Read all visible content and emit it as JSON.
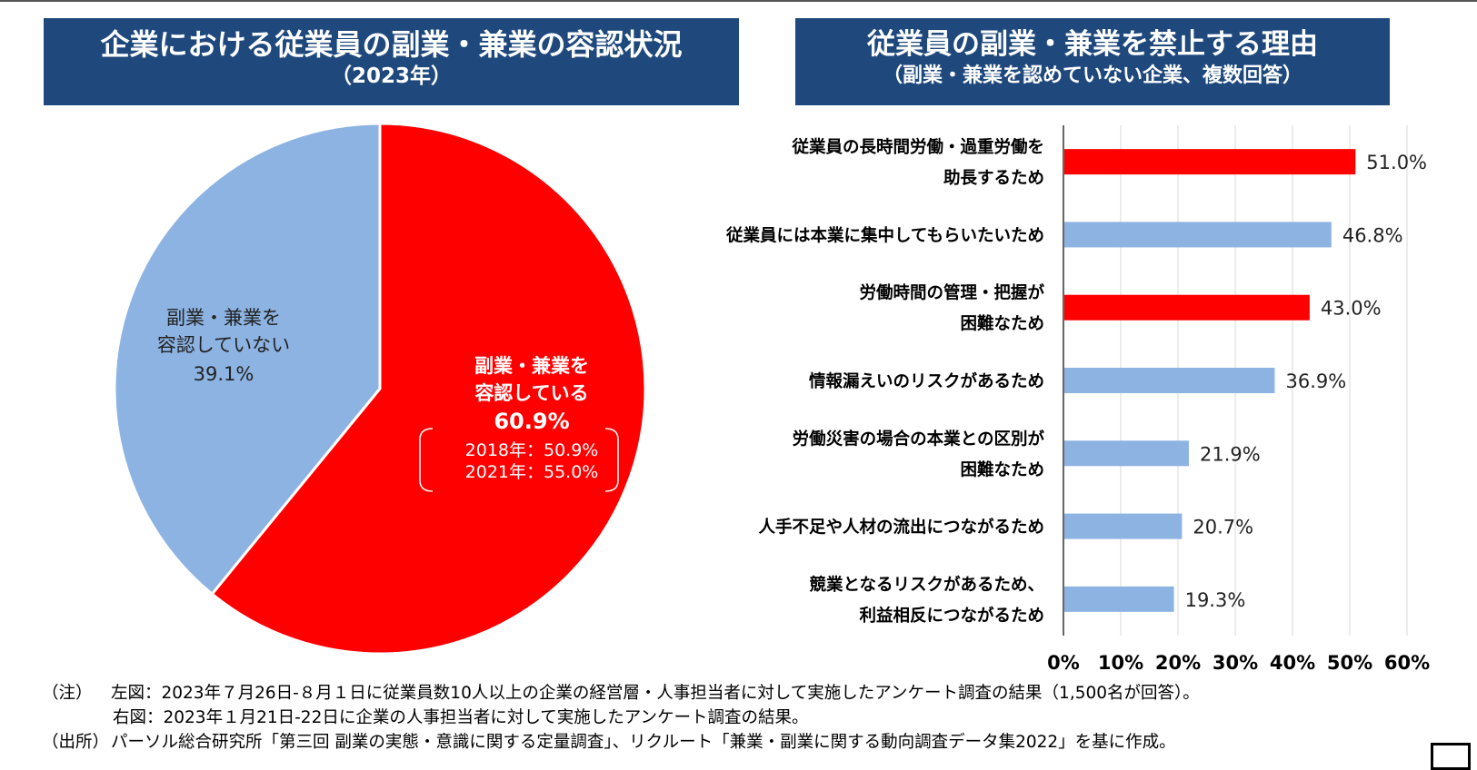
{
  "left": {
    "title": "企業における従業員の副業・兼業の容認状況",
    "subtitle": "（2023年）"
  },
  "right": {
    "title": "従業員の副業・兼業を禁止する理由",
    "subtitle": "（副業・兼業を認めていない企業、複数回答）"
  },
  "colors": {
    "red": "#ff0000",
    "blue": "#8db3e2",
    "title_bg": "#1f497d"
  },
  "notes": {
    "label1": "（注）",
    "line1": "左図：2023年７月26日-８月１日に従業員数10人以上の企業の経営層・人事担当者に対して実施したアンケート調査の結果（1,500名が回答）。",
    "line2": "右図：2023年１月21日-22日に企業の人事担当者に対して実施したアンケート調査の結果。",
    "label2": "（出所）",
    "line3": "パーソル総合研究所「第三回 副業の実態・意識に関する定量調査」、リクルート「兼業・副業に関する動向調査データ集2022」を基に作成。"
  },
  "chart_data": [
    {
      "type": "pie",
      "slices": [
        {
          "label_lines": [
            "副業・兼業を",
            "容認している"
          ],
          "value": 60.9,
          "value_label": "60.9%",
          "color": "#ff0000",
          "history": [
            "2018年：50.9%",
            "2021年：55.0%"
          ]
        },
        {
          "label_lines": [
            "副業・兼業を",
            "容認していない"
          ],
          "value": 39.1,
          "value_label": "39.1%",
          "color": "#8db3e2"
        }
      ]
    },
    {
      "type": "bar",
      "orientation": "horizontal",
      "categories": [
        [
          "従業員の長時間労働・過重労働を",
          "助長するため"
        ],
        [
          "従業員には本業に集中してもらいたいため"
        ],
        [
          "労働時間の管理・把握が",
          "困難なため"
        ],
        [
          "情報漏えいのリスクがあるため"
        ],
        [
          "労働災害の場合の本業との区別が",
          "困難なため"
        ],
        [
          "人手不足や人材の流出につながるため"
        ],
        [
          "競業となるリスクがあるため、",
          "利益相反につながるため"
        ]
      ],
      "values": [
        51.0,
        46.8,
        43.0,
        36.9,
        21.9,
        20.7,
        19.3
      ],
      "value_labels": [
        "51.0%",
        "46.8%",
        "43.0%",
        "36.9%",
        "21.9%",
        "20.7%",
        "19.3%"
      ],
      "colors": [
        "#ff0000",
        "#8db3e2",
        "#ff0000",
        "#8db3e2",
        "#8db3e2",
        "#8db3e2",
        "#8db3e2"
      ],
      "xlim": [
        0,
        60
      ],
      "xticks": [
        "0%",
        "10%",
        "20%",
        "30%",
        "40%",
        "50%",
        "60%"
      ],
      "grid": true
    }
  ]
}
